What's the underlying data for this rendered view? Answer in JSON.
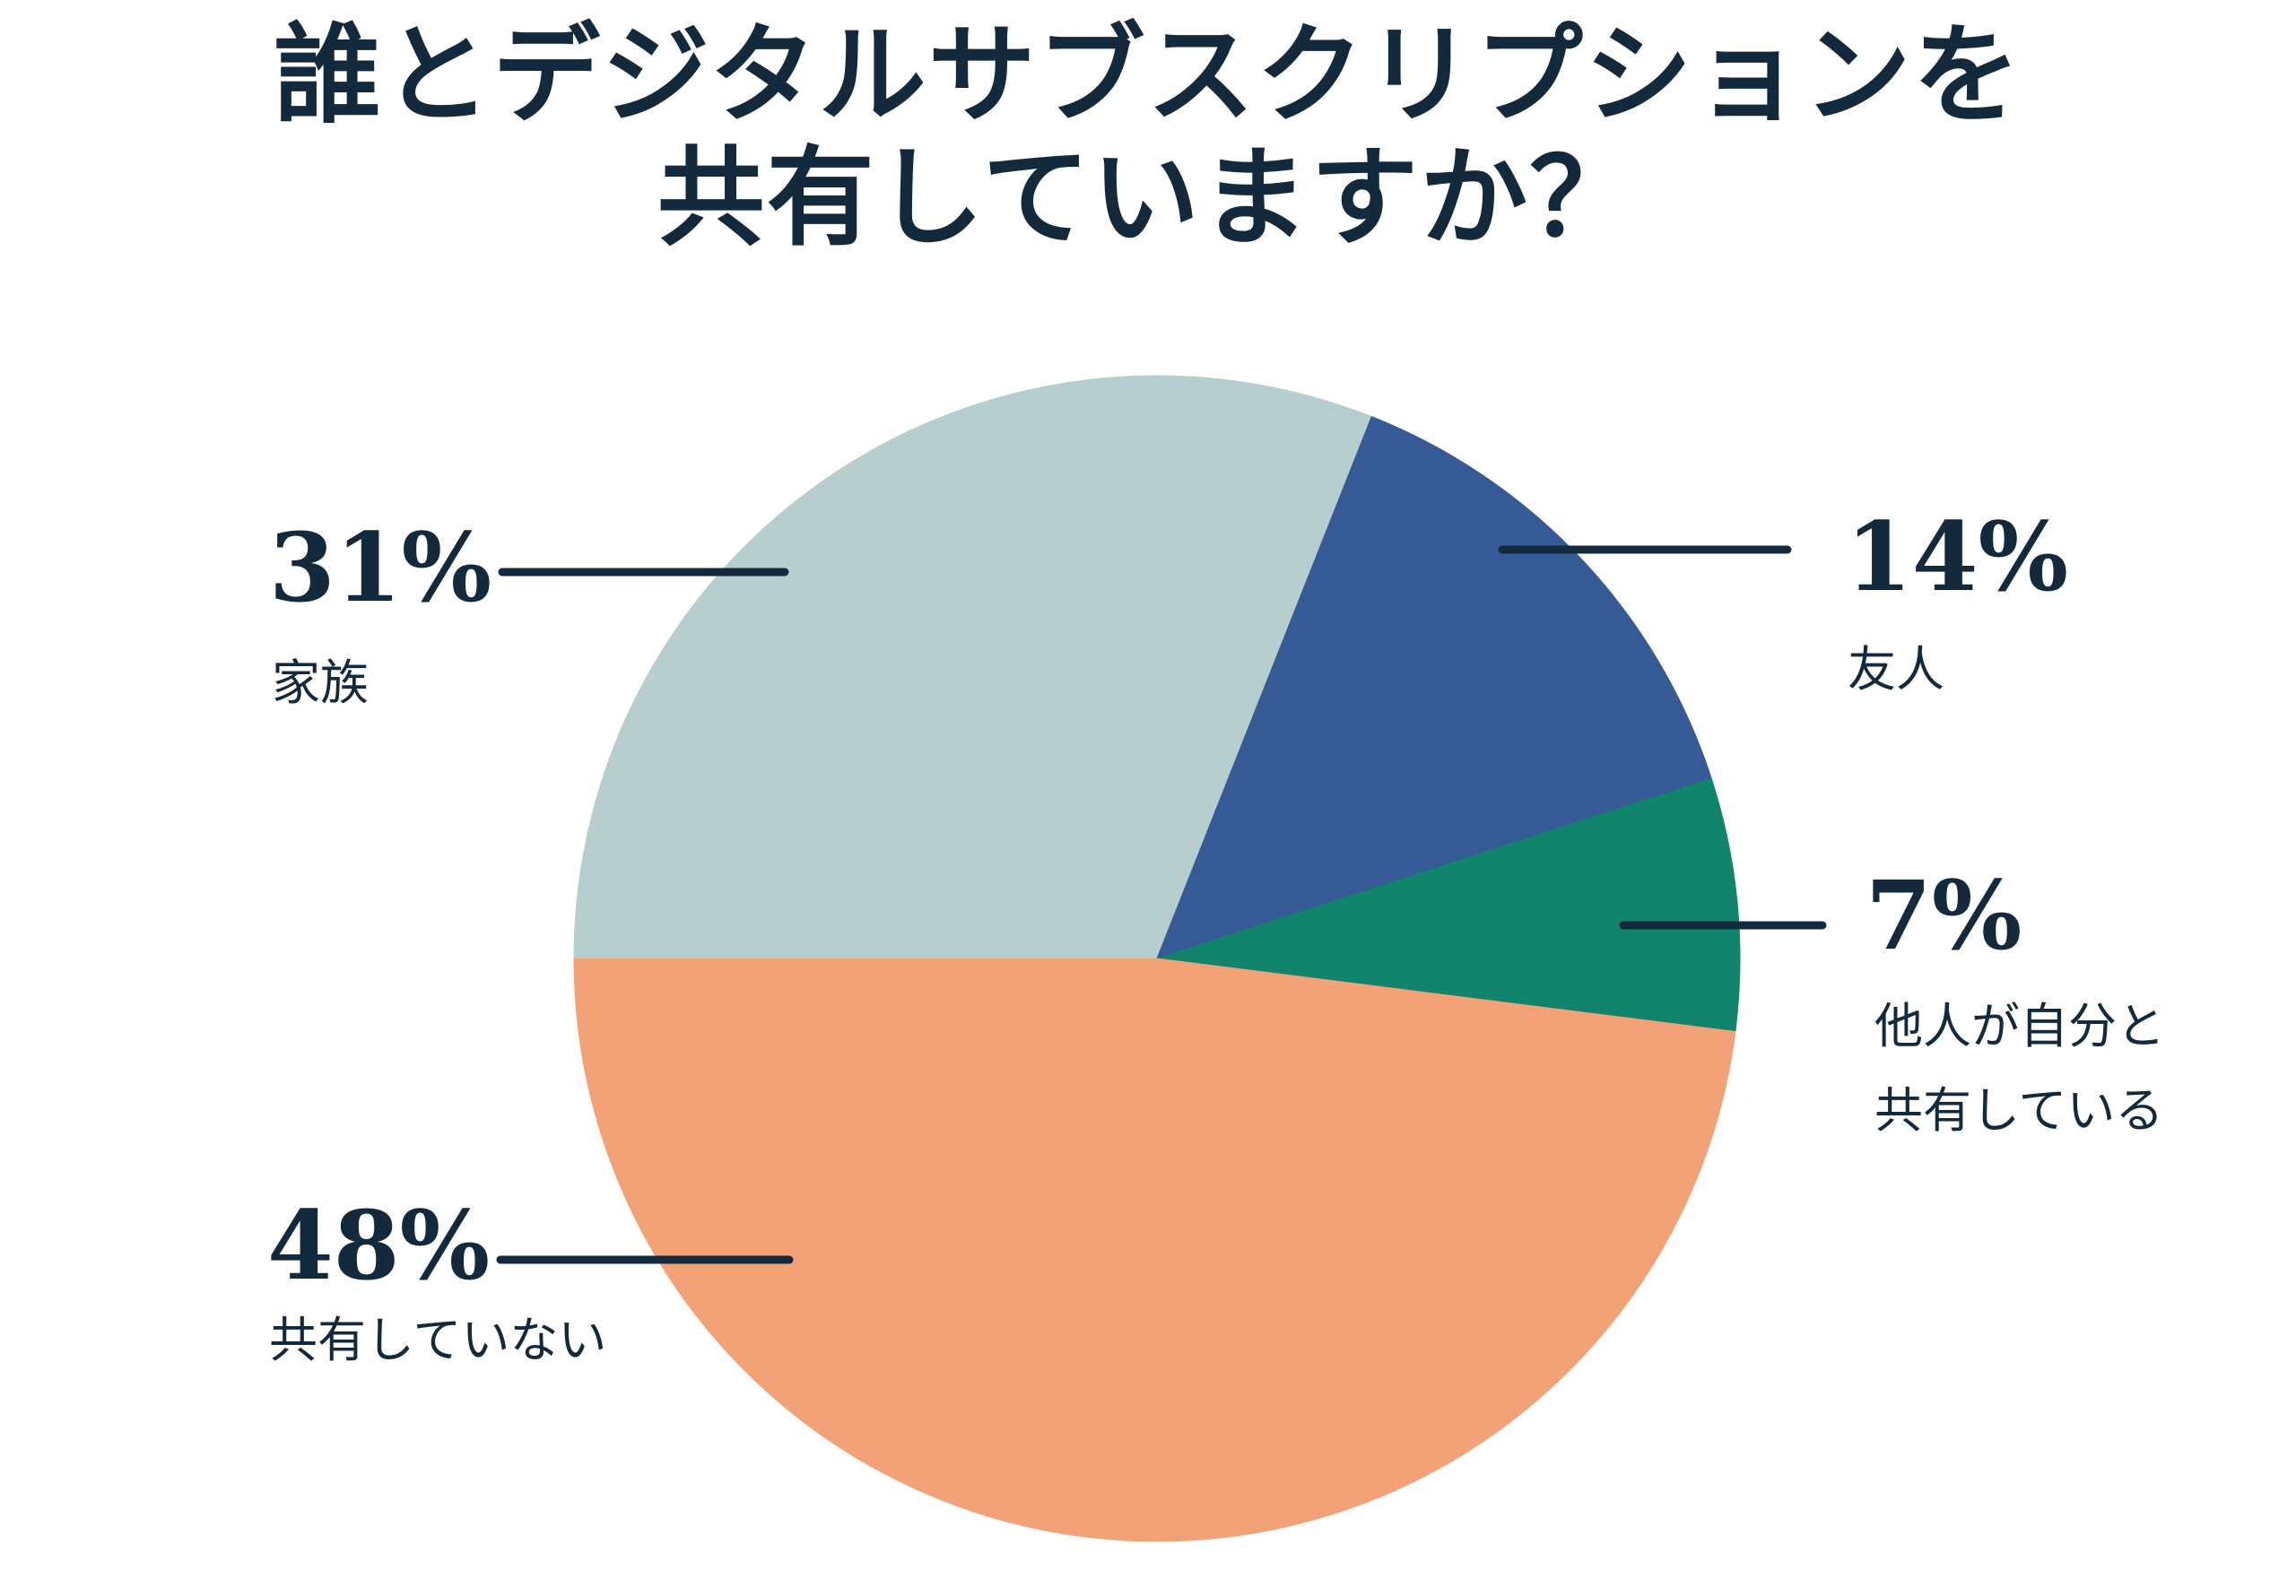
{
  "title": {
    "line1": "誰とデジタルサブスクリプションを",
    "line2": "共有していますか？"
  },
  "colors": {
    "background": "#ffffff",
    "text": "#132a3c",
    "leader_line": "#132a3c"
  },
  "chart_data": {
    "type": "pie",
    "title": "誰とデジタルサブスクリプションを共有していますか？",
    "legend_position": "callouts",
    "start_angle_clockwise_from_top_deg": 270,
    "direction": "clockwise",
    "total": 100,
    "slices": [
      {
        "label": "家族",
        "value": 31,
        "pct_text": "31%",
        "color": "#b6cfce",
        "label_lines": [
          "家族"
        ]
      },
      {
        "label": "友人",
        "value": 14,
        "pct_text": "14%",
        "color": "#365a96",
        "label_lines": [
          "友人"
        ]
      },
      {
        "label": "他人が自分と共有している",
        "value": 7,
        "pct_text": "7%",
        "color": "#10856c",
        "label_lines": [
          "他人が自分と",
          "共有している"
        ]
      },
      {
        "label": "共有していない",
        "value": 48,
        "pct_text": "48%",
        "color": "#f2a276",
        "label_lines": [
          "共有していない"
        ]
      }
    ]
  }
}
